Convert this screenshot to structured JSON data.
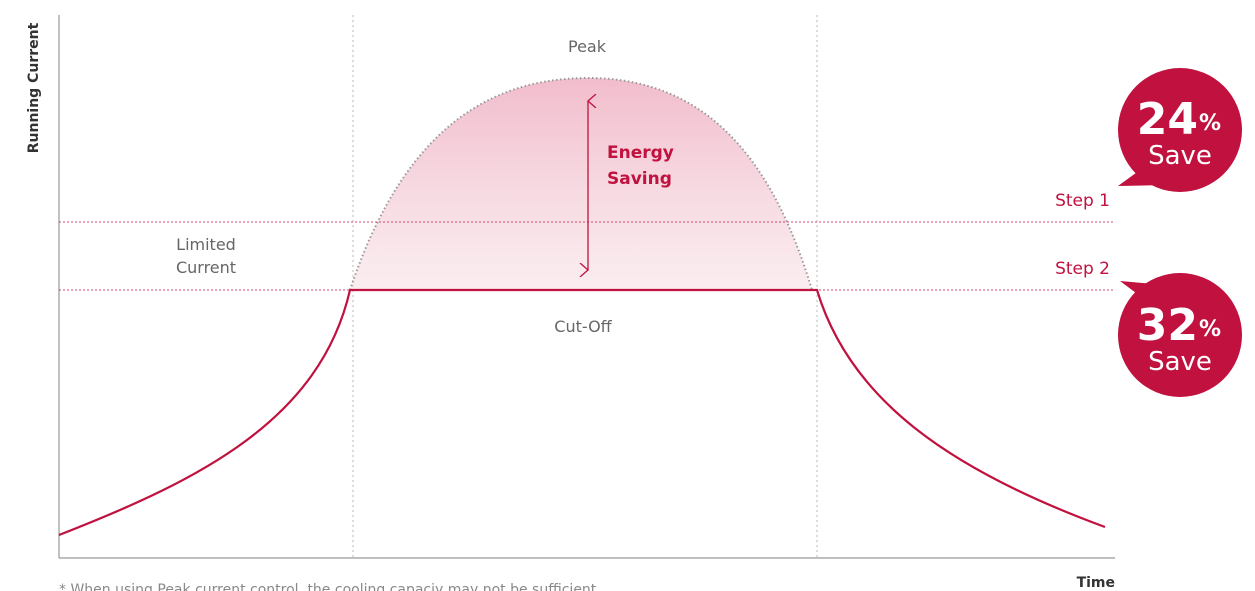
{
  "axes": {
    "y_label": "Running Current",
    "x_label": "Time"
  },
  "labels": {
    "peak": "Peak",
    "energy_saving": [
      "Energy",
      "Saving"
    ],
    "limited_current": [
      "Limited",
      "Current"
    ],
    "cut_off": "Cut-Off",
    "step1": "Step 1",
    "step2": "Step 2"
  },
  "badges": [
    {
      "number": "24",
      "unit": "%",
      "text": "Save"
    },
    {
      "number": "32",
      "unit": "%",
      "text": "Save"
    }
  ],
  "footnote": "* When using Peak current control, the cooling capaciy may not be sufficient."
}
